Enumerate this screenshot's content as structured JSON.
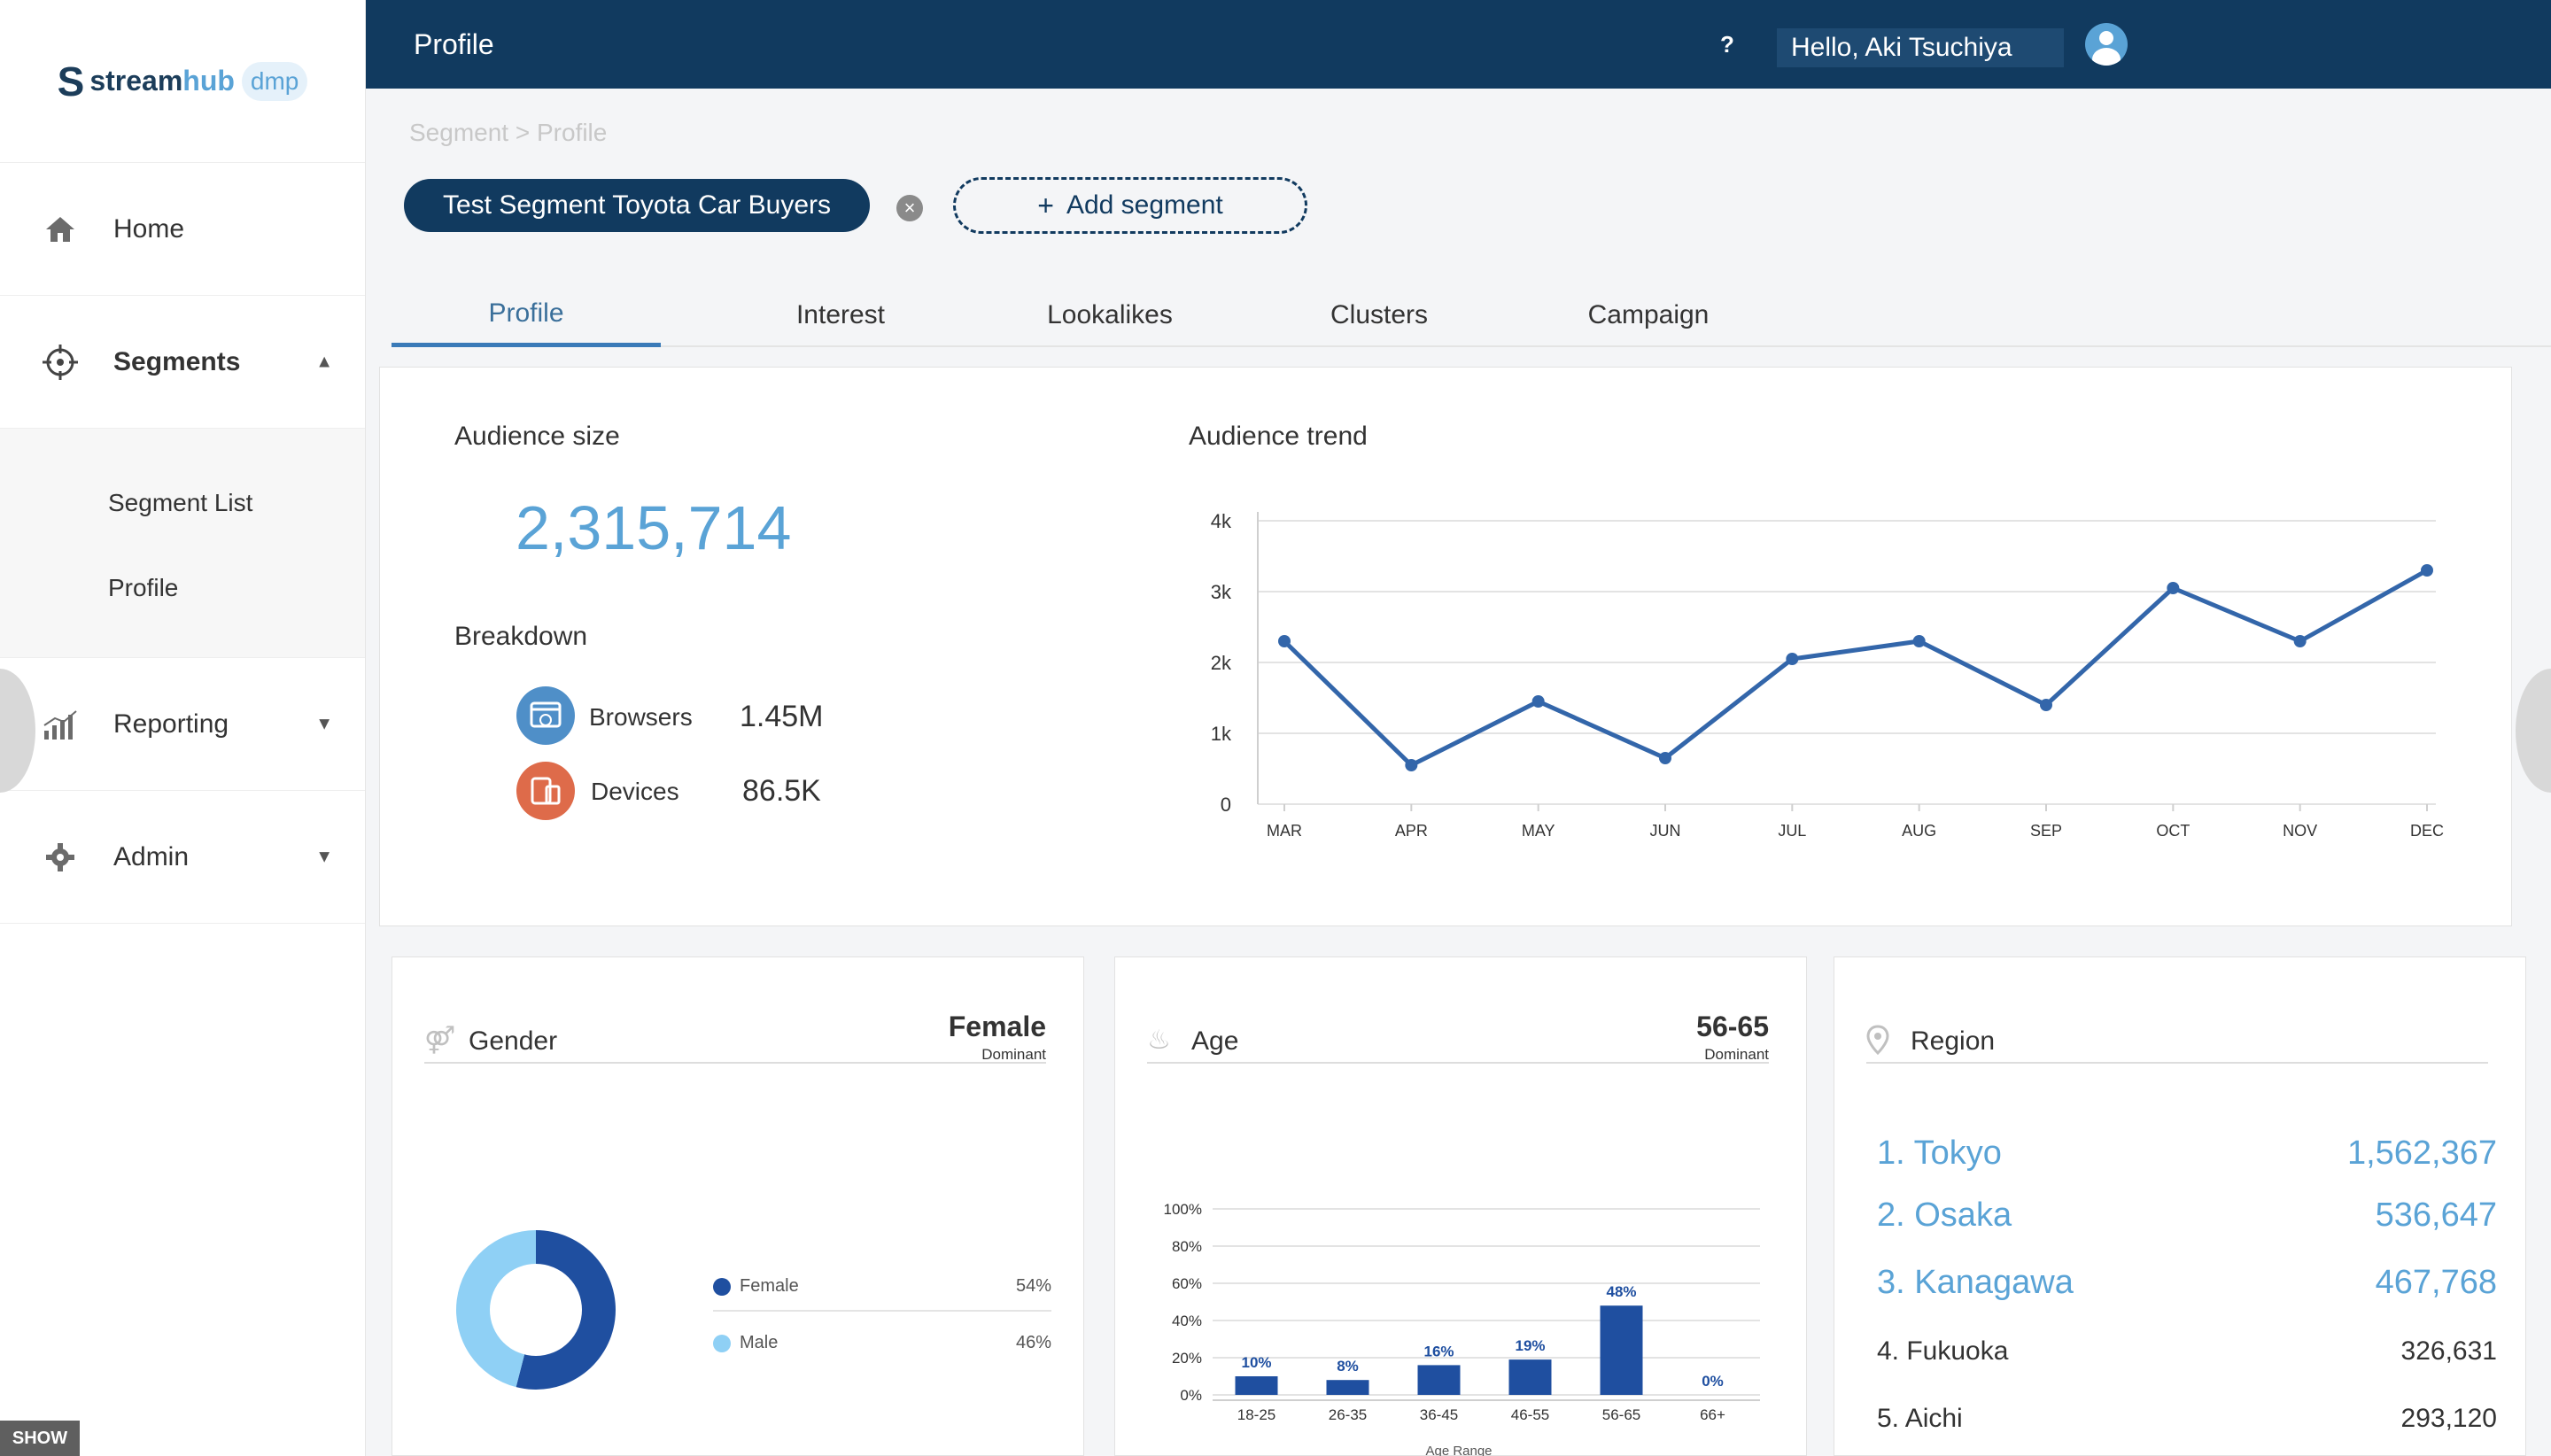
{
  "brand": {
    "name_part1": "stream",
    "name_part2": "hub",
    "tag": "dmp"
  },
  "header": {
    "title": "Profile",
    "help": "?",
    "greeting": "Hello, Aki Tsuchiya"
  },
  "sidebar": {
    "items": [
      {
        "label": "Home",
        "icon": "home-icon"
      },
      {
        "label": "Segments",
        "icon": "target-icon"
      },
      {
        "label": "Reporting",
        "icon": "chart-icon"
      },
      {
        "label": "Admin",
        "icon": "gear-icon"
      }
    ],
    "sub_items": [
      {
        "label": "Segment List"
      },
      {
        "label": "Profile"
      }
    ],
    "show_label": "SHOW"
  },
  "breadcrumb": "Segment > Profile",
  "segment": {
    "active": "Test Segment Toyota Car Buyers",
    "add_label": "Add segment"
  },
  "tabs": [
    {
      "label": "Profile",
      "active": true
    },
    {
      "label": "Interest"
    },
    {
      "label": "Lookalikes"
    },
    {
      "label": "Clusters"
    },
    {
      "label": "Campaign"
    }
  ],
  "audience": {
    "size_label": "Audience size",
    "size_value": "2,315,714",
    "breakdown_label": "Breakdown",
    "browsers_label": "Browsers",
    "browsers_value": "1.45M",
    "devices_label": "Devices",
    "devices_value": "86.5K",
    "colors": {
      "browsers": "#4f8fc8",
      "devices": "#de6b4a"
    }
  },
  "chart_data": [
    {
      "type": "line",
      "title": "Audience trend",
      "categories": [
        "MAR",
        "APR",
        "MAY",
        "JUN",
        "JUL",
        "AUG",
        "SEP",
        "OCT",
        "NOV",
        "DEC"
      ],
      "values": [
        2300,
        550,
        1450,
        650,
        2050,
        2300,
        1400,
        3050,
        2300,
        3300
      ],
      "ylim": [
        0,
        4000
      ],
      "y_ticks": [
        "0",
        "1k",
        "2k",
        "3k",
        "4k"
      ],
      "color": "#3366aa",
      "grid": true
    },
    {
      "type": "bar",
      "title": "Age",
      "categories": [
        "18-25",
        "26-35",
        "36-45",
        "46-55",
        "56-65",
        "66+"
      ],
      "values": [
        10,
        8,
        16,
        19,
        48,
        0
      ],
      "value_labels": [
        "10%",
        "8%",
        "16%",
        "19%",
        "48%",
        "0%"
      ],
      "ylim": [
        0,
        100
      ],
      "y_ticks": [
        "0%",
        "20%",
        "40%",
        "60%",
        "80%",
        "100%"
      ],
      "xlabel": "Age Range",
      "color": "#1f4fa0"
    },
    {
      "type": "pie",
      "title": "Gender",
      "categories": [
        "Female",
        "Male"
      ],
      "values": [
        54,
        46
      ],
      "value_labels": [
        "54%",
        "46%"
      ],
      "colors": [
        "#1f4fa0",
        "#8fd0f5"
      ]
    }
  ],
  "gender": {
    "title": "Gender",
    "dominant_value": "Female",
    "dominant_label": "Dominant"
  },
  "age": {
    "title": "Age",
    "dominant_value": "56-65",
    "dominant_label": "Dominant"
  },
  "region": {
    "title": "Region",
    "items": [
      {
        "name": "1. Tokyo",
        "value": "1,562,367"
      },
      {
        "name": "2. Osaka",
        "value": "536,647"
      },
      {
        "name": "3. Kanagawa",
        "value": "467,768"
      },
      {
        "name": "4. Fukuoka",
        "value": "326,631"
      },
      {
        "name": "5. Aichi",
        "value": "293,120"
      }
    ]
  }
}
